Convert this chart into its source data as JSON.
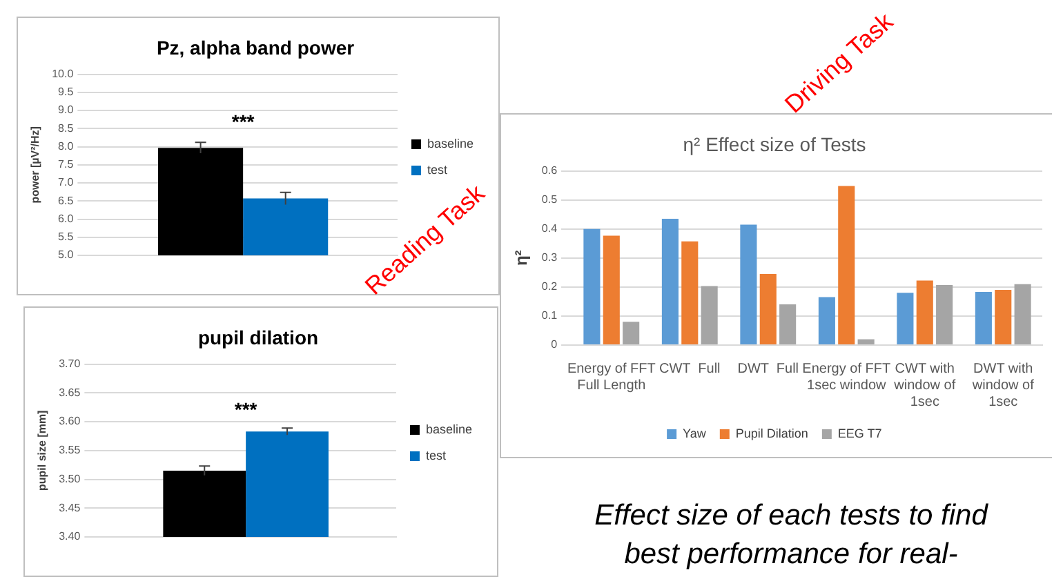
{
  "chart_data": [
    {
      "type": "bar",
      "title": "Pz, alpha band power",
      "ylabel": "power [µV²/Hz]",
      "categories": [
        null
      ],
      "series": [
        {
          "name": "baseline",
          "color": "#000000",
          "values": [
            7.97
          ],
          "errors": [
            0.15
          ]
        },
        {
          "name": "test",
          "color": "#0070c0",
          "values": [
            6.57
          ],
          "errors": [
            0.17
          ]
        }
      ],
      "ylim": [
        5,
        10
      ],
      "yticks": [
        {
          "value": 5,
          "label": "5.0"
        },
        {
          "value": 5.5,
          "label": "5.5"
        },
        {
          "value": 6,
          "label": "6.0"
        },
        {
          "value": 6.5,
          "label": "6.5"
        },
        {
          "value": 7,
          "label": "7.0"
        },
        {
          "value": 7.5,
          "label": "7.5"
        },
        {
          "value": 8,
          "label": "8.0"
        },
        {
          "value": 8.5,
          "label": "8.5"
        },
        {
          "value": 9,
          "label": "9.0"
        },
        {
          "value": 9.5,
          "label": "9.5"
        },
        {
          "value": 10,
          "label": "10.0"
        }
      ],
      "grid": "y",
      "legend": "right",
      "annotations": [
        "***",
        "Reading Task"
      ]
    },
    {
      "type": "bar",
      "title": "pupil dilation",
      "ylabel": "pupil size [mm]",
      "categories": [
        null
      ],
      "series": [
        {
          "name": "baseline",
          "color": "#000000",
          "values": [
            3.515
          ],
          "errors": [
            0.008
          ]
        },
        {
          "name": "test",
          "color": "#0070c0",
          "values": [
            3.583
          ],
          "errors": [
            0.006
          ]
        }
      ],
      "ylim": [
        3.4,
        3.7
      ],
      "yticks": [
        {
          "value": 3.4,
          "label": "3.40"
        },
        {
          "value": 3.45,
          "label": "3.45"
        },
        {
          "value": 3.5,
          "label": "3.50"
        },
        {
          "value": 3.55,
          "label": "3.55"
        },
        {
          "value": 3.6,
          "label": "3.60"
        },
        {
          "value": 3.65,
          "label": "3.65"
        },
        {
          "value": 3.7,
          "label": "3.70"
        }
      ],
      "grid": "y",
      "legend": "right",
      "annotations": [
        "***"
      ]
    },
    {
      "type": "bar",
      "title": "η² Effect size of Tests",
      "ylabel": "η²",
      "categories": [
        "Energy of FFT Full Length",
        "CWT  Full",
        "DWT  Full",
        "Energy of FFT 1sec window",
        "CWT with window of 1sec",
        "DWT with window of 1sec"
      ],
      "series": [
        {
          "name": "Yaw",
          "color": "#5b9bd5",
          "values": [
            0.4,
            0.435,
            0.415,
            0.165,
            0.18,
            0.183
          ]
        },
        {
          "name": "Pupil Dilation",
          "color": "#ed7d31",
          "values": [
            0.377,
            0.357,
            0.245,
            0.548,
            0.222,
            0.19
          ]
        },
        {
          "name": "EEG T7",
          "color": "#a5a5a5",
          "values": [
            0.08,
            0.203,
            0.14,
            0.02,
            0.207,
            0.21
          ]
        }
      ],
      "ylim": [
        0,
        0.6
      ],
      "yticks": [
        0,
        0.1,
        0.2,
        0.3,
        0.4,
        0.5,
        0.6
      ],
      "grid": "y",
      "legend": "bottom",
      "annotations": [
        "Driving Task",
        "Effect size of each tests to find best performance for real-"
      ]
    }
  ]
}
